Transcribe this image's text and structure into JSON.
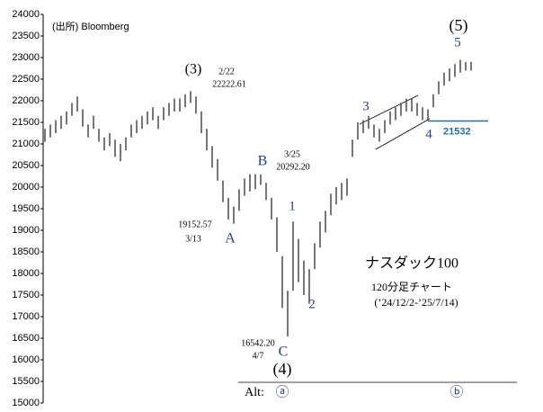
{
  "chart_data": {
    "type": "candlestick",
    "source": "(出所) Bloomberg",
    "categories": [
      null,
      null,
      null,
      null,
      null,
      null,
      null,
      null,
      null,
      null,
      null,
      null,
      null,
      null,
      null,
      null,
      null,
      null,
      null,
      null,
      null,
      null,
      null,
      null,
      null,
      null,
      null,
      null,
      null,
      null,
      null,
      null,
      null,
      null,
      null,
      null,
      null,
      null,
      null,
      null,
      null,
      null,
      null,
      null,
      null,
      null,
      null,
      null,
      null,
      null,
      null,
      null,
      null,
      null,
      null,
      null,
      null,
      null,
      null,
      null,
      null,
      null,
      null,
      null,
      null,
      null,
      null,
      null,
      null,
      null,
      null,
      null,
      null,
      null,
      null,
      null,
      null,
      null,
      null,
      null
    ],
    "low": [
      21050,
      21150,
      21250,
      21350,
      21450,
      21650,
      21750,
      21400,
      21150,
      21350,
      21050,
      20850,
      20950,
      20700,
      20600,
      20850,
      21150,
      21250,
      21350,
      21450,
      21550,
      21350,
      21550,
      21650,
      21750,
      21750,
      21850,
      21950,
      21700,
      21250,
      20850,
      20450,
      20150,
      19650,
      19250,
      19152.57,
      19450,
      19800,
      19900,
      19950,
      20050,
      19700,
      19250,
      18500,
      17200,
      16542.2,
      17600,
      17800,
      17500,
      17300,
      18100,
      18600,
      18950,
      19350,
      19600,
      19700,
      19800,
      20700,
      21100,
      21250,
      21350,
      21150,
      21050,
      21250,
      21450,
      21550,
      21650,
      21750,
      21750,
      21650,
      21550,
      21532,
      21850,
      22150,
      22350,
      22450,
      22550,
      22650,
      22700,
      22700
    ],
    "high": [
      21350,
      21450,
      21550,
      21650,
      21750,
      21950,
      22100,
      21800,
      21450,
      21650,
      21350,
      21150,
      21250,
      21100,
      21000,
      21150,
      21450,
      21550,
      21650,
      21750,
      21850,
      21650,
      21850,
      21950,
      22050,
      22050,
      22150,
      22222.61,
      22100,
      21750,
      21350,
      20950,
      20650,
      20150,
      19750,
      19550,
      19950,
      20200,
      20300,
      20300,
      20292.2,
      20100,
      19750,
      19300,
      18400,
      17600,
      19200,
      18800,
      18300,
      18100,
      18700,
      19200,
      19450,
      19850,
      20000,
      20100,
      20200,
      21100,
      21500,
      21550,
      21650,
      21450,
      21350,
      21550,
      21750,
      21850,
      21950,
      22050,
      22050,
      21950,
      21850,
      21800,
      22150,
      22450,
      22650,
      22750,
      22850,
      22950,
      22900,
      22900
    ],
    "color": "#555555",
    "ylim": [
      15000,
      24000
    ],
    "yticks": [
      15000,
      15500,
      16000,
      16500,
      17000,
      17500,
      18000,
      18500,
      19000,
      19500,
      20000,
      20500,
      21000,
      21500,
      22000,
      22500,
      23000,
      23500,
      24000
    ],
    "grid": false,
    "level_line": 21532,
    "level_color": "#1f6fb5",
    "annotations": [
      "(3)",
      "2/22",
      "22222.61",
      "B",
      "3/25",
      "20292.20",
      "1",
      "19152.57",
      "3/13",
      "A",
      "16542.20",
      "4/7",
      "C",
      "2",
      "3",
      "4",
      "5",
      "(5)",
      "(4)",
      "ナスダック100",
      "120分足チャート",
      "(’24/12/2-’25/7/14)",
      "Alt:",
      "ⓐ",
      "ⓑ"
    ]
  }
}
